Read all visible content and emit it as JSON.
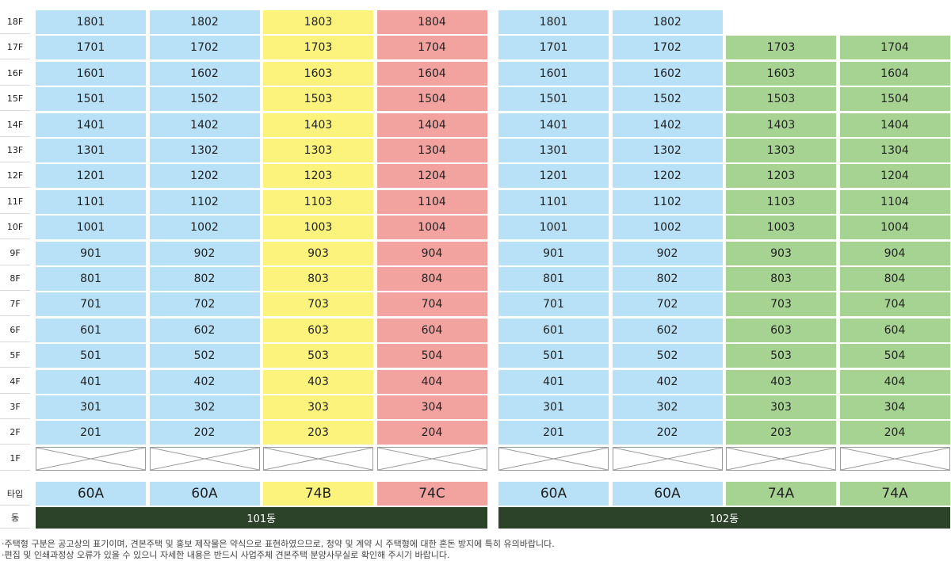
{
  "floors": [
    "18F",
    "17F",
    "16F",
    "15F",
    "14F",
    "13F",
    "12F",
    "11F",
    "10F",
    "9F",
    "8F",
    "7F",
    "6F",
    "5F",
    "4F",
    "3F",
    "2F",
    "1F"
  ],
  "row_labels": {
    "type": "타입",
    "building": "동"
  },
  "colors": {
    "blue": "#b8e0f7",
    "yellow": "#fbf37c",
    "pink": "#f2a3a0",
    "green": "#a6d392",
    "building_bar": "#2c4229"
  },
  "buildings": [
    {
      "name": "101동",
      "columns": [
        {
          "type": "60A",
          "color": "blue",
          "units": [
            "1801",
            "1701",
            "1601",
            "1501",
            "1401",
            "1301",
            "1201",
            "1101",
            "1001",
            "901",
            "801",
            "701",
            "601",
            "501",
            "401",
            "301",
            "201"
          ]
        },
        {
          "type": "60A",
          "color": "blue",
          "units": [
            "1802",
            "1702",
            "1602",
            "1502",
            "1402",
            "1302",
            "1202",
            "1102",
            "1002",
            "902",
            "802",
            "702",
            "602",
            "502",
            "402",
            "302",
            "202"
          ]
        },
        {
          "type": "74B",
          "color": "yellow",
          "units": [
            "1803",
            "1703",
            "1603",
            "1503",
            "1403",
            "1303",
            "1203",
            "1103",
            "1003",
            "903",
            "803",
            "703",
            "603",
            "503",
            "403",
            "303",
            "203"
          ]
        },
        {
          "type": "74C",
          "color": "pink",
          "units": [
            "1804",
            "1704",
            "1604",
            "1504",
            "1404",
            "1304",
            "1204",
            "1104",
            "1004",
            "904",
            "804",
            "704",
            "604",
            "504",
            "404",
            "304",
            "204"
          ]
        }
      ]
    },
    {
      "name": "102동",
      "columns": [
        {
          "type": "60A",
          "color": "blue",
          "units": [
            "1801",
            "1701",
            "1601",
            "1501",
            "1401",
            "1301",
            "1201",
            "1101",
            "1001",
            "901",
            "801",
            "701",
            "601",
            "501",
            "401",
            "301",
            "201"
          ]
        },
        {
          "type": "60A",
          "color": "blue",
          "units": [
            "1802",
            "1702",
            "1602",
            "1502",
            "1402",
            "1302",
            "1202",
            "1102",
            "1002",
            "902",
            "802",
            "702",
            "602",
            "502",
            "402",
            "302",
            "202"
          ]
        },
        {
          "type": "74A",
          "color": "green",
          "units": [
            "",
            "1703",
            "1603",
            "1503",
            "1403",
            "1303",
            "1203",
            "1103",
            "1003",
            "903",
            "803",
            "703",
            "603",
            "503",
            "403",
            "303",
            "203"
          ]
        },
        {
          "type": "74A",
          "color": "green",
          "units": [
            "",
            "1704",
            "1604",
            "1504",
            "1404",
            "1304",
            "1204",
            "1104",
            "1004",
            "904",
            "804",
            "704",
            "604",
            "504",
            "404",
            "304",
            "204"
          ]
        }
      ]
    }
  ],
  "notes": [
    "·주택형 구분은 공고상의 표기이며, 견본주택 및 홍보 제작물은 약식으로 표현하였으므로, 청약 및 계약 시 주택형에 대한 혼돈 방지에 특히 유의바랍니다.",
    "·편집 및 인쇄과정상 오류가 있을 수 있으니 자세한 내용은 반드시 사업주체 견본주택 분양사무실로 확인해 주시기 바랍니다."
  ]
}
